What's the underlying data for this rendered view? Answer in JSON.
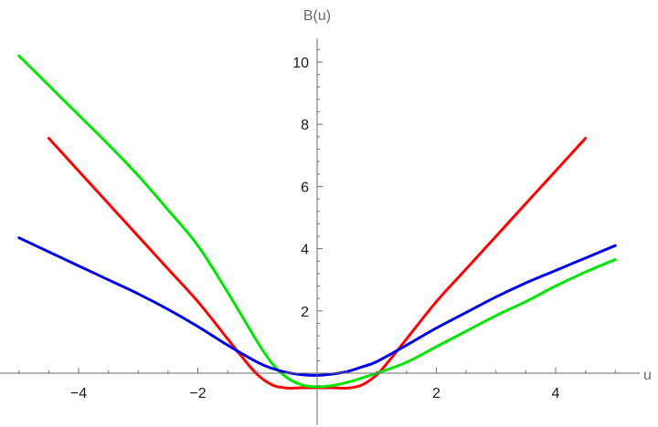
{
  "chart_data": {
    "type": "line",
    "xlabel": "u",
    "ylabel": "B(u)",
    "xlim": [
      -5.2,
      5.5
    ],
    "ylim": [
      -0.7,
      10.8
    ],
    "x_ticks": [
      -4,
      -2,
      2,
      4
    ],
    "y_ticks": [
      2,
      4,
      6,
      8,
      10
    ],
    "x_tick_labels": [
      "−4",
      "−2",
      "2",
      "4"
    ],
    "y_tick_labels": [
      "2",
      "4",
      "6",
      "8",
      "10"
    ],
    "grid": false,
    "legend": "none",
    "series": [
      {
        "color": "#ff0000",
        "x": [
          -4.5,
          -4.0,
          -3.5,
          -3.0,
          -2.5,
          -2.0,
          -1.5,
          -1.25,
          -1.0,
          -0.75,
          -0.5,
          -0.25,
          0.0,
          0.25,
          0.5,
          0.75,
          1.0,
          1.25,
          1.5,
          2.0,
          2.5,
          3.0,
          3.5,
          4.0,
          4.5
        ],
        "y": [
          7.55,
          6.5,
          5.45,
          4.4,
          3.35,
          2.3,
          1.1,
          0.5,
          -0.05,
          -0.38,
          -0.48,
          -0.47,
          -0.47,
          -0.47,
          -0.48,
          -0.38,
          -0.05,
          0.5,
          1.1,
          2.3,
          3.35,
          4.4,
          5.45,
          6.5,
          7.55
        ]
      },
      {
        "color": "#00e600",
        "x": [
          -5.0,
          -4.5,
          -4.0,
          -3.5,
          -3.0,
          -2.5,
          -2.0,
          -1.5,
          -1.0,
          -0.75,
          -0.5,
          -0.25,
          0.0,
          0.25,
          0.5,
          1.0,
          1.5,
          2.0,
          2.5,
          3.0,
          3.5,
          4.0,
          4.5,
          5.0
        ],
        "y": [
          10.2,
          9.25,
          8.3,
          7.35,
          6.35,
          5.25,
          4.1,
          2.6,
          1.0,
          0.3,
          -0.15,
          -0.38,
          -0.44,
          -0.4,
          -0.3,
          0.0,
          0.35,
          0.85,
          1.35,
          1.85,
          2.3,
          2.8,
          3.25,
          3.65
        ]
      },
      {
        "color": "#0000e6",
        "x": [
          -5.0,
          -4.5,
          -4.0,
          -3.5,
          -3.0,
          -2.5,
          -2.0,
          -1.5,
          -1.0,
          -0.75,
          -0.5,
          -0.25,
          0.0,
          0.25,
          0.5,
          0.75,
          1.0,
          1.5,
          2.0,
          2.5,
          3.0,
          3.5,
          4.0,
          4.5,
          5.0
        ],
        "y": [
          4.35,
          3.9,
          3.45,
          3.0,
          2.55,
          2.05,
          1.5,
          0.9,
          0.35,
          0.15,
          0.02,
          -0.05,
          -0.07,
          -0.03,
          0.05,
          0.2,
          0.37,
          0.9,
          1.45,
          1.95,
          2.45,
          2.9,
          3.3,
          3.7,
          4.1
        ]
      }
    ]
  }
}
